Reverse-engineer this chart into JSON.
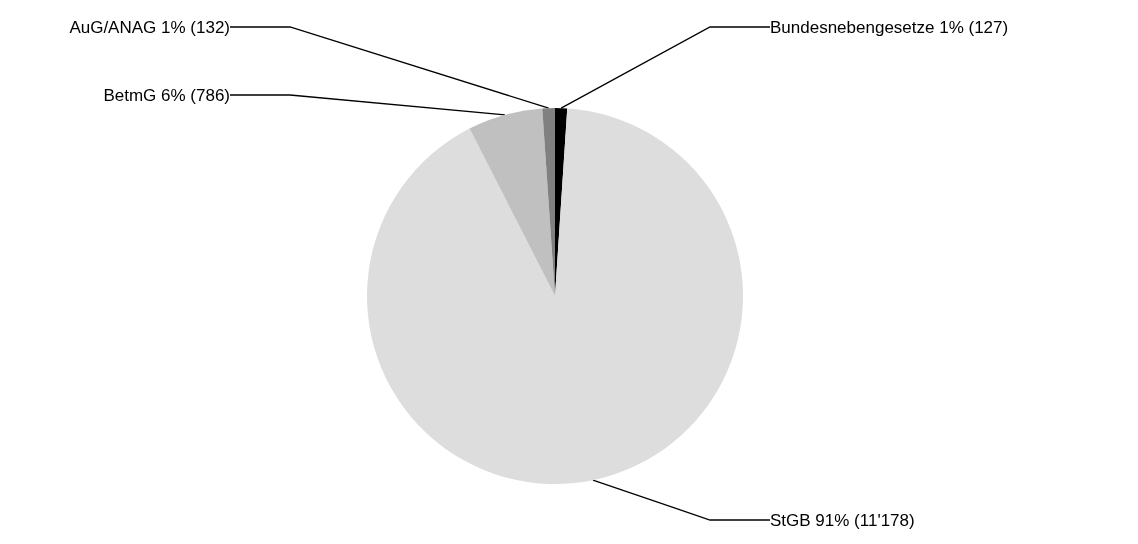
{
  "chart_data": {
    "type": "pie",
    "categories": [
      "Bundesnebengesetze",
      "StGB",
      "BetmG",
      "AuG/ANAG"
    ],
    "values": [
      127,
      11178,
      786,
      132
    ],
    "colors": [
      "#000000",
      "#dddddd",
      "#c0c0c0",
      "#808080"
    ],
    "value_labels": [
      "1% (127)",
      "91% (11'178)",
      "6% (786)",
      "1% (132)"
    ],
    "legend": false
  }
}
